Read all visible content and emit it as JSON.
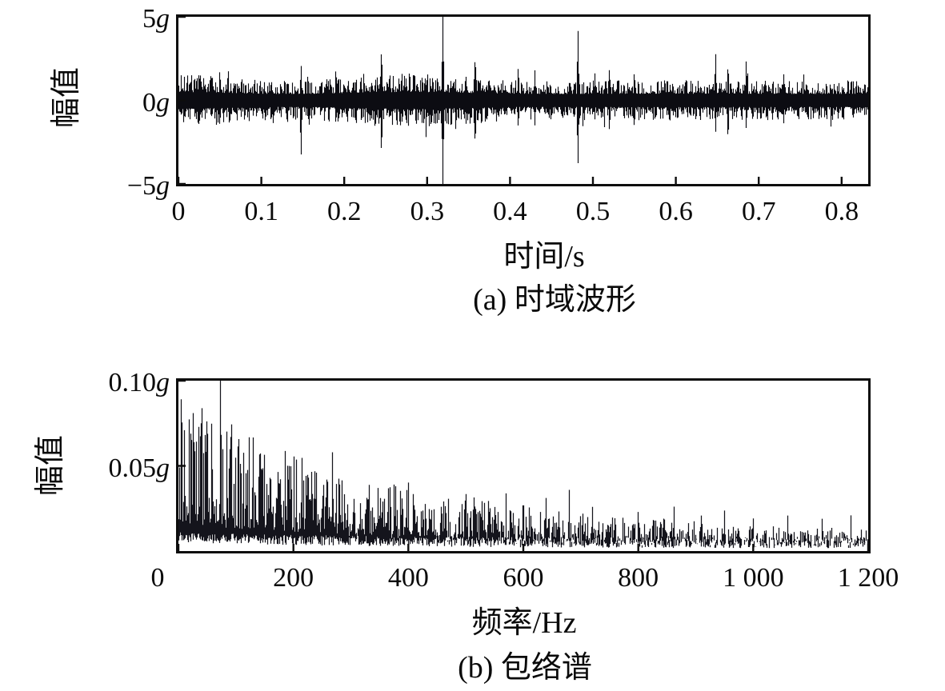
{
  "figure": {
    "kind": "two-panel vibration analysis figure"
  },
  "chart_data": [
    {
      "type": "line",
      "panel": "a",
      "title": "(a) 时域波形",
      "xlabel": "时间/s",
      "ylabel": "幅值",
      "unit": "g",
      "xlim": [
        0,
        0.832
      ],
      "ylim": [
        -5,
        5
      ],
      "grid": false,
      "legend": null,
      "xticks": [
        {
          "label": "0",
          "value": 0
        },
        {
          "label": "0.1",
          "value": 0.1
        },
        {
          "label": "0.2",
          "value": 0.2
        },
        {
          "label": "0.3",
          "value": 0.3
        },
        {
          "label": "0.4",
          "value": 0.4
        },
        {
          "label": "0.5",
          "value": 0.5
        },
        {
          "label": "0.6",
          "value": 0.6
        },
        {
          "label": "0.7",
          "value": 0.7
        },
        {
          "label": "0.8",
          "value": 0.8
        }
      ],
      "yticks": [
        {
          "label": "5",
          "unit": "g",
          "value": 5
        },
        {
          "label": "0",
          "unit": "g",
          "value": 0
        },
        {
          "label": "−5",
          "unit": "g",
          "value": -5
        }
      ],
      "signal": {
        "description": "broadband vibration noise band of about ±1g with repeated impact spikes",
        "noise_band_g": 1.0,
        "impulses": [
          {
            "t": 0.025,
            "up": 1.7,
            "down": 1.6
          },
          {
            "t": 0.05,
            "up": 1.8,
            "down": 1.5
          },
          {
            "t": 0.148,
            "up": 2.1,
            "down": 3.3
          },
          {
            "t": 0.19,
            "up": 1.9,
            "down": 1.4
          },
          {
            "t": 0.245,
            "up": 3.0,
            "down": 3.1
          },
          {
            "t": 0.319,
            "up": 5.0,
            "down": 5.0
          },
          {
            "t": 0.358,
            "up": 2.6,
            "down": 2.6
          },
          {
            "t": 0.41,
            "up": 2.0,
            "down": 1.6
          },
          {
            "t": 0.43,
            "up": 1.8,
            "down": 1.5
          },
          {
            "t": 0.482,
            "up": 4.2,
            "down": 3.8
          },
          {
            "t": 0.52,
            "up": 1.9,
            "down": 1.8
          },
          {
            "t": 0.55,
            "up": 1.7,
            "down": 1.6
          },
          {
            "t": 0.648,
            "up": 2.8,
            "down": 1.9
          },
          {
            "t": 0.663,
            "up": 2.1,
            "down": 2.3
          },
          {
            "t": 0.685,
            "up": 2.4,
            "down": 1.7
          },
          {
            "t": 0.73,
            "up": 1.6,
            "down": 1.4
          }
        ],
        "seed": 1234567
      }
    },
    {
      "type": "line",
      "panel": "b",
      "title": "(b) 包络谱",
      "xlabel": "频率/Hz",
      "ylabel": "幅值",
      "unit": "g",
      "xlim": [
        0,
        1200
      ],
      "ylim": [
        0,
        0.1
      ],
      "grid": false,
      "legend": null,
      "xticks": [
        {
          "label": "0",
          "value": 0
        },
        {
          "label": "200",
          "value": 200
        },
        {
          "label": "400",
          "value": 400
        },
        {
          "label": "600",
          "value": 600
        },
        {
          "label": "800",
          "value": 800
        },
        {
          "label": "1 000",
          "value": 1000
        },
        {
          "label": "1 200",
          "value": 1200
        }
      ],
      "yticks": [
        {
          "label": "0.10",
          "unit": "g",
          "value": 0.1
        },
        {
          "label": "0.05",
          "unit": "g",
          "value": 0.05
        }
      ],
      "spectrum": {
        "description": "envelope spectrum decaying with frequency; strongest component near 73 Hz clipped at 0.10g",
        "baseline": {
          "floor": 0.004,
          "amp": 0.052,
          "decay_hz": 300,
          "amp2": 0.01,
          "decay2_hz": 900
        },
        "peaks": [
          {
            "f": 6,
            "a": 0.08
          },
          {
            "f": 22,
            "a": 0.068
          },
          {
            "f": 38,
            "a": 0.072
          },
          {
            "f": 47,
            "a": 0.076
          },
          {
            "f": 58,
            "a": 0.078
          },
          {
            "f": 73,
            "a": 0.113
          },
          {
            "f": 90,
            "a": 0.062
          },
          {
            "f": 105,
            "a": 0.06
          },
          {
            "f": 120,
            "a": 0.055
          },
          {
            "f": 142,
            "a": 0.085
          },
          {
            "f": 160,
            "a": 0.058
          },
          {
            "f": 178,
            "a": 0.052
          },
          {
            "f": 196,
            "a": 0.048
          },
          {
            "f": 215,
            "a": 0.055
          },
          {
            "f": 232,
            "a": 0.046
          },
          {
            "f": 252,
            "a": 0.05
          },
          {
            "f": 268,
            "a": 0.058
          },
          {
            "f": 285,
            "a": 0.045
          },
          {
            "f": 305,
            "a": 0.04
          },
          {
            "f": 330,
            "a": 0.042
          },
          {
            "f": 352,
            "a": 0.038
          },
          {
            "f": 375,
            "a": 0.04
          },
          {
            "f": 400,
            "a": 0.042
          },
          {
            "f": 430,
            "a": 0.035
          },
          {
            "f": 465,
            "a": 0.032
          },
          {
            "f": 500,
            "a": 0.04
          },
          {
            "f": 515,
            "a": 0.043
          },
          {
            "f": 540,
            "a": 0.038
          },
          {
            "f": 570,
            "a": 0.034
          },
          {
            "f": 600,
            "a": 0.04
          },
          {
            "f": 640,
            "a": 0.034
          },
          {
            "f": 680,
            "a": 0.036
          },
          {
            "f": 720,
            "a": 0.03
          },
          {
            "f": 760,
            "a": 0.026
          },
          {
            "f": 800,
            "a": 0.024
          },
          {
            "f": 845,
            "a": 0.028
          },
          {
            "f": 862,
            "a": 0.03
          },
          {
            "f": 910,
            "a": 0.022
          },
          {
            "f": 950,
            "a": 0.024
          },
          {
            "f": 1000,
            "a": 0.02
          },
          {
            "f": 1060,
            "a": 0.021
          },
          {
            "f": 1120,
            "a": 0.019
          },
          {
            "f": 1170,
            "a": 0.021
          }
        ],
        "seed": 424242
      }
    }
  ]
}
